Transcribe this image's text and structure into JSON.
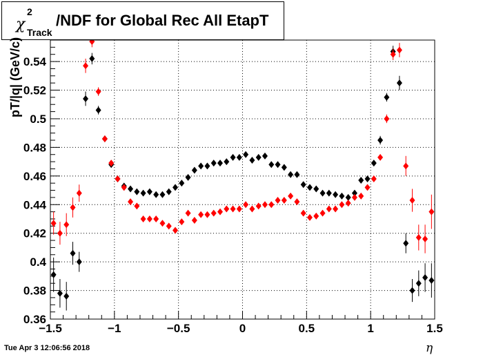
{
  "title": {
    "symbol": "χ",
    "superscript": "2",
    "subscript": "Track",
    "text": "/NDF for Global Rec All EtapT"
  },
  "footer": {
    "timestamp": "Tue Apr  3 12:06:56 2018"
  },
  "chart_data": {
    "type": "scatter",
    "xlabel": "η",
    "ylabel": "pT/|q| (GeV/c)",
    "xlim": [
      -1.5,
      1.5
    ],
    "ylim": [
      0.36,
      0.555
    ],
    "x_ticks": [
      "−1.5",
      "−1",
      "−0.5",
      "0",
      "0.5",
      "1",
      "1.5"
    ],
    "x_tick_values": [
      -1.5,
      -1,
      -0.5,
      0,
      0.5,
      1,
      1.5
    ],
    "y_ticks": [
      "0.36",
      "0.38",
      "0.4",
      "0.42",
      "0.44",
      "0.46",
      "0.48",
      "0.5",
      "0.52",
      "0.54"
    ],
    "y_tick_values": [
      0.36,
      0.38,
      0.4,
      0.42,
      0.44,
      0.46,
      0.48,
      0.5,
      0.52,
      0.54
    ],
    "grid": true,
    "series": [
      {
        "color": "#000000",
        "x": [
          -1.475,
          -1.425,
          -1.375,
          -1.325,
          -1.275,
          -1.225,
          -1.175,
          -1.125,
          -1.075,
          -1.025,
          -0.975,
          -0.925,
          -0.875,
          -0.825,
          -0.775,
          -0.725,
          -0.675,
          -0.625,
          -0.575,
          -0.525,
          -0.475,
          -0.425,
          -0.375,
          -0.325,
          -0.275,
          -0.225,
          -0.175,
          -0.125,
          -0.075,
          -0.025,
          0.025,
          0.075,
          0.125,
          0.175,
          0.225,
          0.275,
          0.325,
          0.375,
          0.425,
          0.475,
          0.525,
          0.575,
          0.625,
          0.675,
          0.725,
          0.775,
          0.825,
          0.875,
          0.925,
          0.975,
          1.025,
          1.075,
          1.125,
          1.175,
          1.225,
          1.275,
          1.325,
          1.375,
          1.425,
          1.475
        ],
        "y": [
          0.391,
          0.378,
          0.376,
          0.406,
          0.4,
          0.514,
          0.542,
          0.506,
          0.486,
          0.468,
          0.458,
          0.453,
          0.451,
          0.449,
          0.448,
          0.449,
          0.447,
          0.447,
          0.449,
          0.452,
          0.455,
          0.459,
          0.464,
          0.467,
          0.467,
          0.469,
          0.469,
          0.47,
          0.473,
          0.473,
          0.475,
          0.471,
          0.473,
          0.474,
          0.468,
          0.468,
          0.466,
          0.461,
          0.461,
          0.454,
          0.452,
          0.451,
          0.448,
          0.448,
          0.447,
          0.446,
          0.445,
          0.448,
          0.457,
          0.458,
          0.469,
          0.485,
          0.515,
          0.547,
          0.525,
          0.413,
          0.38,
          0.385,
          0.389,
          0.387
        ],
        "err": [
          0.012,
          0.01,
          0.01,
          0.008,
          0.007,
          0.005,
          0.004,
          0.003,
          0.002,
          0.002,
          0.002,
          0.002,
          0.002,
          0.002,
          0.002,
          0.002,
          0.002,
          0.002,
          0.002,
          0.002,
          0.002,
          0.002,
          0.002,
          0.002,
          0.002,
          0.002,
          0.002,
          0.002,
          0.002,
          0.002,
          0.002,
          0.002,
          0.002,
          0.002,
          0.002,
          0.002,
          0.002,
          0.002,
          0.002,
          0.002,
          0.002,
          0.002,
          0.002,
          0.002,
          0.002,
          0.002,
          0.002,
          0.002,
          0.002,
          0.002,
          0.002,
          0.003,
          0.003,
          0.004,
          0.005,
          0.007,
          0.008,
          0.009,
          0.01,
          0.012
        ]
      },
      {
        "color": "#ff0000",
        "x": [
          -1.475,
          -1.425,
          -1.375,
          -1.325,
          -1.275,
          -1.225,
          -1.175,
          -1.125,
          -1.075,
          -1.025,
          -0.975,
          -0.925,
          -0.875,
          -0.825,
          -0.775,
          -0.725,
          -0.675,
          -0.625,
          -0.575,
          -0.525,
          -0.475,
          -0.425,
          -0.375,
          -0.325,
          -0.275,
          -0.225,
          -0.175,
          -0.125,
          -0.075,
          -0.025,
          0.025,
          0.075,
          0.125,
          0.175,
          0.225,
          0.275,
          0.325,
          0.375,
          0.425,
          0.475,
          0.525,
          0.575,
          0.625,
          0.675,
          0.725,
          0.775,
          0.825,
          0.875,
          0.925,
          0.975,
          1.025,
          1.075,
          1.125,
          1.175,
          1.225,
          1.275,
          1.325,
          1.375,
          1.425,
          1.475
        ],
        "y": [
          0.427,
          0.42,
          0.426,
          0.438,
          0.448,
          0.537,
          0.554,
          0.519,
          0.486,
          0.469,
          0.458,
          0.452,
          0.442,
          0.439,
          0.43,
          0.43,
          0.43,
          0.427,
          0.425,
          0.422,
          0.428,
          0.434,
          0.429,
          0.433,
          0.433,
          0.434,
          0.435,
          0.437,
          0.437,
          0.437,
          0.44,
          0.437,
          0.439,
          0.44,
          0.44,
          0.443,
          0.443,
          0.446,
          0.442,
          0.434,
          0.431,
          0.432,
          0.434,
          0.437,
          0.437,
          0.44,
          0.441,
          0.445,
          0.446,
          0.452,
          0.458,
          0.473,
          0.5,
          0.545,
          0.548,
          0.467,
          0.443,
          0.417,
          0.416,
          0.435
        ],
        "err": [
          0.008,
          0.008,
          0.008,
          0.007,
          0.006,
          0.005,
          0.004,
          0.003,
          0.002,
          0.002,
          0.002,
          0.002,
          0.002,
          0.002,
          0.002,
          0.002,
          0.002,
          0.002,
          0.002,
          0.002,
          0.002,
          0.002,
          0.002,
          0.002,
          0.002,
          0.002,
          0.002,
          0.002,
          0.002,
          0.002,
          0.002,
          0.002,
          0.002,
          0.002,
          0.002,
          0.002,
          0.002,
          0.002,
          0.002,
          0.002,
          0.002,
          0.002,
          0.002,
          0.002,
          0.002,
          0.002,
          0.002,
          0.002,
          0.002,
          0.002,
          0.002,
          0.002,
          0.003,
          0.004,
          0.005,
          0.007,
          0.008,
          0.009,
          0.01,
          0.012
        ]
      }
    ]
  }
}
